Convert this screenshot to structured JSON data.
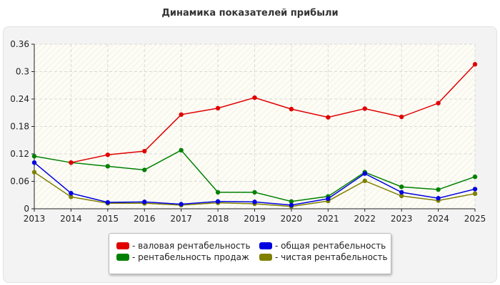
{
  "chart_data": {
    "type": "line",
    "title": "Динамика показателей прибыли",
    "x": [
      "2013",
      "2014",
      "2015",
      "2016",
      "2017",
      "2018",
      "2019",
      "2020",
      "2021",
      "2022",
      "2023",
      "2024",
      "2025"
    ],
    "ylim": [
      0,
      0.36
    ],
    "yticks": [
      "0",
      "0.06",
      "0.12",
      "0.18",
      "0.24",
      "0.3",
      "0.36"
    ],
    "grid": true,
    "legend_position": "bottom",
    "series": [
      {
        "name": "- валовая рентабельность",
        "color": "#e00000",
        "values": [
          null,
          0.101,
          0.118,
          0.126,
          0.206,
          0.22,
          0.243,
          0.218,
          0.2,
          0.219,
          0.201,
          0.231,
          0.316
        ]
      },
      {
        "name": "- рентабельность продаж",
        "color": "#008000",
        "values": [
          0.115,
          0.101,
          0.093,
          0.085,
          0.128,
          0.036,
          0.036,
          0.016,
          0.027,
          0.08,
          0.048,
          0.042,
          0.07
        ]
      },
      {
        "name": "- общая рентабельность",
        "color": "#0000e0",
        "values": [
          0.101,
          0.034,
          0.014,
          0.015,
          0.01,
          0.016,
          0.015,
          0.008,
          0.022,
          0.077,
          0.036,
          0.023,
          0.043
        ]
      },
      {
        "name": "- чистая рентабельность",
        "color": "#808000",
        "values": [
          0.08,
          0.026,
          0.012,
          0.012,
          0.008,
          0.013,
          0.011,
          0.005,
          0.017,
          0.061,
          0.028,
          0.018,
          0.033
        ]
      }
    ]
  }
}
